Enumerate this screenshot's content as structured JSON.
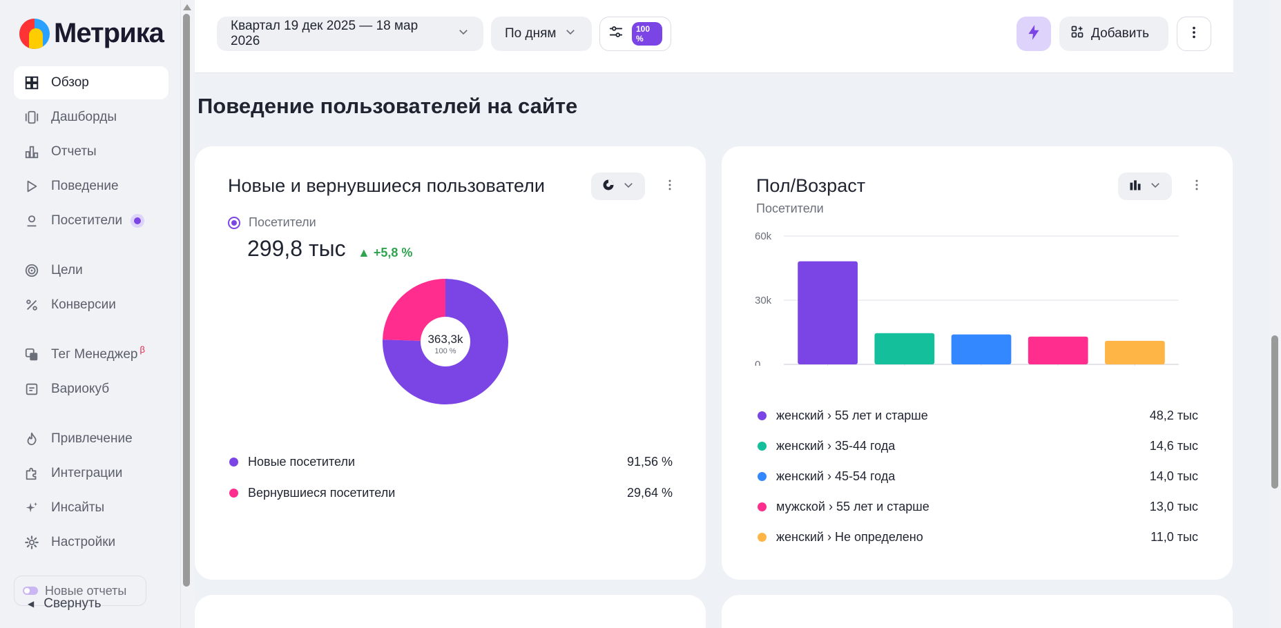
{
  "app": {
    "logo_text": "Метрика"
  },
  "sidebar": {
    "items": [
      {
        "label": "Обзор",
        "icon": "grid-icon"
      },
      {
        "label": "Дашборды",
        "icon": "dashboards-icon"
      },
      {
        "label": "Отчеты",
        "icon": "reports-icon"
      },
      {
        "label": "Поведение",
        "icon": "play-icon"
      },
      {
        "label": "Посетители",
        "icon": "user-icon"
      },
      {
        "label": "Цели",
        "icon": "target-icon"
      },
      {
        "label": "Конверсии",
        "icon": "percent-icon"
      },
      {
        "label": "Тег Менеджер",
        "icon": "tag-manager-icon",
        "badge": "β"
      },
      {
        "label": "Вариокуб",
        "icon": "variocube-icon"
      },
      {
        "label": "Привлечение",
        "icon": "flame-icon"
      },
      {
        "label": "Интеграции",
        "icon": "puzzle-icon"
      },
      {
        "label": "Инсайты",
        "icon": "sparkle-icon"
      },
      {
        "label": "Настройки",
        "icon": "gear-icon"
      }
    ],
    "new_reports_label": "Новые отчеты",
    "collapse_label": "Свернуть"
  },
  "topbar": {
    "period_label": "Квартал 19 дек 2025 — 18 мар 2026",
    "granularity_label": "По дням",
    "sampling_badge": "100 %",
    "add_label": "Добавить"
  },
  "main": {
    "section_title": "Поведение пользователей на сайте",
    "card_new_returning": {
      "title": "Новые и вернувшиеся пользователи",
      "metric_label": "Посетители",
      "metric_value": "299,8 тыс",
      "delta": "▲ +5,8 %",
      "center_value": "363,3k",
      "center_percent": "100 %",
      "legend": [
        {
          "label": "Новые посетители",
          "value": "91,56 %",
          "color": "#7b45e6"
        },
        {
          "label": "Вернувшиеся посетители",
          "value": "29,64 %",
          "color": "#ff2d8d"
        }
      ]
    },
    "card_gender_age": {
      "title": "Пол/Возраст",
      "subtitle": "Посетители",
      "legend": [
        {
          "label": "женский › 55 лет и старше",
          "value": "48,2 тыс",
          "color": "#7b45e6"
        },
        {
          "label": "женский › 35-44 года",
          "value": "14,6 тыс",
          "color": "#14bf9c"
        },
        {
          "label": "женский › 45-54 года",
          "value": "14,0 тыс",
          "color": "#3388ff"
        },
        {
          "label": "мужской › 55 лет и старше",
          "value": "13,0 тыс",
          "color": "#ff2d8d"
        },
        {
          "label": "женский › Не определено",
          "value": "11,0 тыс",
          "color": "#ffb545"
        }
      ]
    }
  },
  "chart_data": [
    {
      "type": "pie",
      "categories": [
        "Новые посетители",
        "Вернувшиеся посетители"
      ],
      "values": [
        75.5,
        24.5
      ],
      "colors": [
        "#7b45e6",
        "#ff2d8d"
      ],
      "center_label": "363,3k"
    },
    {
      "type": "bar",
      "categories": [
        "женский › 55 лет и старше",
        "женский › 35-44 года",
        "женский › 45-54 года",
        "мужской › 55 лет и старше",
        "женский › Не определено"
      ],
      "values": [
        48200,
        14600,
        14000,
        13000,
        11000
      ],
      "colors": [
        "#7b45e6",
        "#14bf9c",
        "#3388ff",
        "#ff2d8d",
        "#ffb545"
      ],
      "yticks": [
        "0",
        "30k",
        "60k"
      ],
      "ylim": [
        0,
        60000
      ],
      "grid": true
    }
  ]
}
